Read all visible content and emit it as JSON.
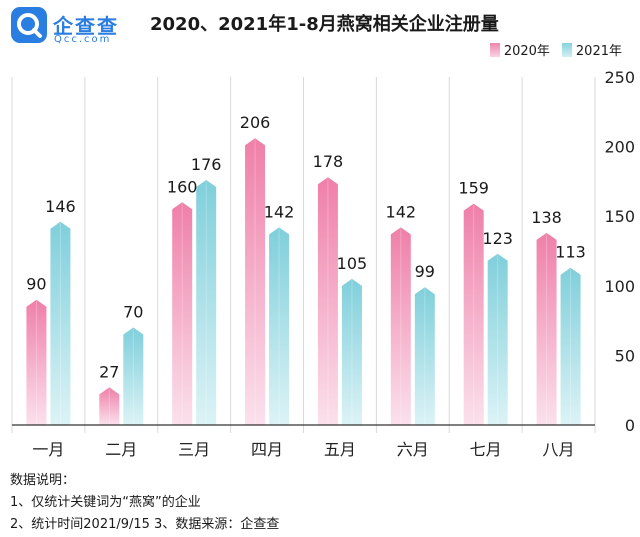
{
  "logo": {
    "name_cn": "企查查",
    "name_en": "Qcc.com"
  },
  "chart_data": {
    "type": "bar",
    "title": "2020、2021年1-8月燕窝相关企业注册量",
    "categories": [
      "一月",
      "二月",
      "三月",
      "四月",
      "五月",
      "六月",
      "七月",
      "八月"
    ],
    "series": [
      {
        "name": "2020年",
        "values": [
          90,
          27,
          160,
          206,
          178,
          142,
          159,
          138
        ],
        "color": "#ef86ad"
      },
      {
        "name": "2021年",
        "values": [
          146,
          70,
          176,
          142,
          105,
          99,
          123,
          113
        ],
        "color": "#86d3de"
      }
    ],
    "ylim": [
      0,
      250
    ],
    "yticks": [
      0,
      50,
      100,
      150,
      200,
      250
    ],
    "legend_position": "top-right",
    "grid": "vertical category separators"
  },
  "notes": {
    "heading": "数据说明：",
    "line1": "1、仅统计关键词为“燕窝”的企业",
    "line2": "2、统计时间2021/9/15   3、数据来源：企查查"
  }
}
